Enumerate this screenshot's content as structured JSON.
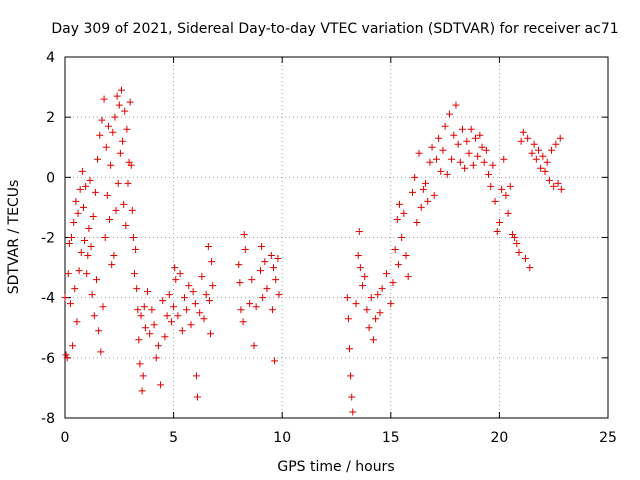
{
  "chart_data": {
    "type": "scatter",
    "title": "Day 309 of 2021, Sidereal Day-to-day VTEC variation (SDTVAR) for receiver ac71",
    "xlabel": "GPS time / hours",
    "ylabel": "SDTVAR / TECUs",
    "xlim": [
      0,
      25
    ],
    "ylim": [
      -8,
      4
    ],
    "xticks": [
      0,
      5,
      10,
      15,
      20,
      25
    ],
    "yticks": [
      -8,
      -6,
      -4,
      -2,
      0,
      2,
      4
    ],
    "grid": true,
    "marker": "+",
    "color": "#e00000",
    "series": [
      {
        "name": "SDTVAR",
        "points": [
          [
            0.0,
            -4.0
          ],
          [
            0.05,
            -5.9
          ],
          [
            0.1,
            -6.0
          ],
          [
            0.15,
            -3.2
          ],
          [
            0.2,
            -2.2
          ],
          [
            0.25,
            -4.2
          ],
          [
            0.3,
            -2.0
          ],
          [
            0.35,
            -5.6
          ],
          [
            0.4,
            -1.5
          ],
          [
            0.45,
            -3.7
          ],
          [
            0.5,
            -0.8
          ],
          [
            0.55,
            -4.8
          ],
          [
            0.6,
            -1.2
          ],
          [
            0.65,
            -3.1
          ],
          [
            0.7,
            -0.4
          ],
          [
            0.75,
            -2.5
          ],
          [
            0.8,
            0.2
          ],
          [
            0.85,
            -1.0
          ],
          [
            0.9,
            -2.1
          ],
          [
            0.95,
            -0.3
          ],
          [
            1.0,
            -3.2
          ],
          [
            1.05,
            -2.6
          ],
          [
            1.1,
            -1.7
          ],
          [
            1.15,
            -0.1
          ],
          [
            1.2,
            -2.3
          ],
          [
            1.25,
            -3.9
          ],
          [
            1.3,
            -1.3
          ],
          [
            1.35,
            -4.6
          ],
          [
            1.4,
            -0.5
          ],
          [
            1.45,
            -3.4
          ],
          [
            1.5,
            0.6
          ],
          [
            1.55,
            -5.1
          ],
          [
            1.6,
            1.4
          ],
          [
            1.65,
            -5.8
          ],
          [
            1.7,
            1.9
          ],
          [
            1.75,
            -4.3
          ],
          [
            1.8,
            2.6
          ],
          [
            1.85,
            -2.0
          ],
          [
            1.9,
            1.0
          ],
          [
            1.95,
            -0.6
          ],
          [
            2.0,
            1.7
          ],
          [
            2.05,
            -1.4
          ],
          [
            2.1,
            0.4
          ],
          [
            2.15,
            -2.9
          ],
          [
            2.2,
            1.5
          ],
          [
            2.25,
            -2.6
          ],
          [
            2.3,
            2.0
          ],
          [
            2.35,
            -1.1
          ],
          [
            2.4,
            2.7
          ],
          [
            2.45,
            -0.2
          ],
          [
            2.5,
            2.4
          ],
          [
            2.55,
            0.8
          ],
          [
            2.6,
            2.9
          ],
          [
            2.65,
            1.2
          ],
          [
            2.7,
            -0.9
          ],
          [
            2.75,
            2.2
          ],
          [
            2.8,
            -1.6
          ],
          [
            2.85,
            1.6
          ],
          [
            2.9,
            -0.2
          ],
          [
            2.95,
            0.5
          ],
          [
            3.0,
            2.5
          ],
          [
            3.05,
            0.4
          ],
          [
            3.1,
            -1.1
          ],
          [
            3.15,
            -2.0
          ],
          [
            3.2,
            -3.2
          ],
          [
            3.25,
            -2.4
          ],
          [
            3.3,
            -3.7
          ],
          [
            3.35,
            -4.4
          ],
          [
            3.4,
            -5.4
          ],
          [
            3.45,
            -6.2
          ],
          [
            3.5,
            -4.6
          ],
          [
            3.55,
            -7.1
          ],
          [
            3.6,
            -6.6
          ],
          [
            3.65,
            -4.3
          ],
          [
            3.7,
            -5.0
          ],
          [
            3.8,
            -3.8
          ],
          [
            3.9,
            -5.2
          ],
          [
            4.0,
            -4.4
          ],
          [
            4.1,
            -4.9
          ],
          [
            4.2,
            -6.0
          ],
          [
            4.3,
            -5.6
          ],
          [
            4.4,
            -6.9
          ],
          [
            4.5,
            -4.1
          ],
          [
            4.6,
            -5.3
          ],
          [
            4.7,
            -4.6
          ],
          [
            4.8,
            -3.9
          ],
          [
            4.9,
            -4.8
          ],
          [
            5.0,
            -4.3
          ],
          [
            5.05,
            -3.0
          ],
          [
            5.1,
            -3.4
          ],
          [
            5.2,
            -4.6
          ],
          [
            5.3,
            -3.2
          ],
          [
            5.4,
            -5.1
          ],
          [
            5.5,
            -4.0
          ],
          [
            5.6,
            -4.4
          ],
          [
            5.7,
            -3.6
          ],
          [
            5.8,
            -4.9
          ],
          [
            5.9,
            -3.8
          ],
          [
            6.0,
            -4.2
          ],
          [
            6.05,
            -6.6
          ],
          [
            6.1,
            -7.3
          ],
          [
            6.2,
            -4.5
          ],
          [
            6.3,
            -3.3
          ],
          [
            6.4,
            -4.7
          ],
          [
            6.5,
            -3.9
          ],
          [
            6.6,
            -2.3
          ],
          [
            6.65,
            -4.1
          ],
          [
            6.7,
            -5.2
          ],
          [
            6.75,
            -2.8
          ],
          [
            6.8,
            -3.6
          ],
          [
            8.0,
            -2.9
          ],
          [
            8.05,
            -3.5
          ],
          [
            8.1,
            -4.4
          ],
          [
            8.2,
            -4.8
          ],
          [
            8.25,
            -1.9
          ],
          [
            8.3,
            -2.4
          ],
          [
            8.5,
            -4.2
          ],
          [
            8.6,
            -3.4
          ],
          [
            8.7,
            -5.6
          ],
          [
            8.8,
            -4.3
          ],
          [
            9.0,
            -3.1
          ],
          [
            9.05,
            -2.3
          ],
          [
            9.1,
            -4.0
          ],
          [
            9.2,
            -2.8
          ],
          [
            9.3,
            -3.7
          ],
          [
            9.5,
            -2.6
          ],
          [
            9.55,
            -4.4
          ],
          [
            9.6,
            -3.0
          ],
          [
            9.65,
            -6.1
          ],
          [
            9.7,
            -3.4
          ],
          [
            9.8,
            -2.7
          ],
          [
            9.85,
            -3.9
          ],
          [
            13.0,
            -4.0
          ],
          [
            13.05,
            -4.7
          ],
          [
            13.1,
            -5.7
          ],
          [
            13.15,
            -6.6
          ],
          [
            13.2,
            -7.3
          ],
          [
            13.25,
            -7.8
          ],
          [
            13.4,
            -4.2
          ],
          [
            13.5,
            -2.6
          ],
          [
            13.55,
            -1.8
          ],
          [
            13.6,
            -3.0
          ],
          [
            13.7,
            -3.6
          ],
          [
            13.8,
            -3.3
          ],
          [
            13.9,
            -4.4
          ],
          [
            14.0,
            -5.0
          ],
          [
            14.1,
            -4.0
          ],
          [
            14.2,
            -5.4
          ],
          [
            14.3,
            -4.7
          ],
          [
            14.4,
            -3.9
          ],
          [
            14.5,
            -4.5
          ],
          [
            14.6,
            -3.7
          ],
          [
            14.8,
            -3.2
          ],
          [
            15.0,
            -4.2
          ],
          [
            15.1,
            -3.5
          ],
          [
            15.2,
            -2.4
          ],
          [
            15.3,
            -1.4
          ],
          [
            15.35,
            -2.9
          ],
          [
            15.4,
            -0.9
          ],
          [
            15.5,
            -2.0
          ],
          [
            15.6,
            -1.2
          ],
          [
            15.7,
            -2.6
          ],
          [
            15.8,
            -3.3
          ],
          [
            16.0,
            -0.5
          ],
          [
            16.1,
            0.0
          ],
          [
            16.2,
            -1.5
          ],
          [
            16.3,
            0.8
          ],
          [
            16.4,
            -1.0
          ],
          [
            16.5,
            -0.4
          ],
          [
            16.6,
            -0.2
          ],
          [
            16.7,
            -0.8
          ],
          [
            16.8,
            0.5
          ],
          [
            16.9,
            1.0
          ],
          [
            17.0,
            -0.6
          ],
          [
            17.1,
            0.6
          ],
          [
            17.2,
            1.3
          ],
          [
            17.3,
            0.2
          ],
          [
            17.4,
            0.9
          ],
          [
            17.5,
            1.7
          ],
          [
            17.6,
            0.1
          ],
          [
            17.7,
            2.1
          ],
          [
            17.8,
            0.6
          ],
          [
            17.9,
            1.4
          ],
          [
            18.0,
            2.4
          ],
          [
            18.1,
            1.1
          ],
          [
            18.2,
            0.5
          ],
          [
            18.3,
            1.6
          ],
          [
            18.4,
            0.3
          ],
          [
            18.5,
            1.2
          ],
          [
            18.6,
            0.8
          ],
          [
            18.7,
            1.6
          ],
          [
            18.8,
            0.4
          ],
          [
            18.9,
            1.3
          ],
          [
            19.0,
            0.7
          ],
          [
            19.1,
            1.4
          ],
          [
            19.2,
            1.0
          ],
          [
            19.3,
            0.5
          ],
          [
            19.4,
            0.9
          ],
          [
            19.5,
            0.1
          ],
          [
            19.6,
            -0.3
          ],
          [
            19.7,
            0.4
          ],
          [
            19.8,
            -0.8
          ],
          [
            19.9,
            -1.8
          ],
          [
            20.0,
            -1.5
          ],
          [
            20.1,
            -0.4
          ],
          [
            20.2,
            0.6
          ],
          [
            20.3,
            -0.6
          ],
          [
            20.4,
            -1.2
          ],
          [
            20.5,
            -0.3
          ],
          [
            20.6,
            -1.9
          ],
          [
            20.7,
            -2.0
          ],
          [
            20.8,
            -2.2
          ],
          [
            20.9,
            -2.5
          ],
          [
            21.0,
            1.2
          ],
          [
            21.1,
            1.5
          ],
          [
            21.2,
            -2.7
          ],
          [
            21.3,
            1.3
          ],
          [
            21.4,
            -3.0
          ],
          [
            21.5,
            0.8
          ],
          [
            21.6,
            1.1
          ],
          [
            21.7,
            0.6
          ],
          [
            21.8,
            0.9
          ],
          [
            21.9,
            0.3
          ],
          [
            22.0,
            0.7
          ],
          [
            22.1,
            0.2
          ],
          [
            22.2,
            0.5
          ],
          [
            22.3,
            -0.1
          ],
          [
            22.4,
            0.9
          ],
          [
            22.5,
            -0.3
          ],
          [
            22.6,
            1.1
          ],
          [
            22.7,
            -0.2
          ],
          [
            22.8,
            1.3
          ],
          [
            22.85,
            -0.4
          ]
        ]
      }
    ]
  }
}
